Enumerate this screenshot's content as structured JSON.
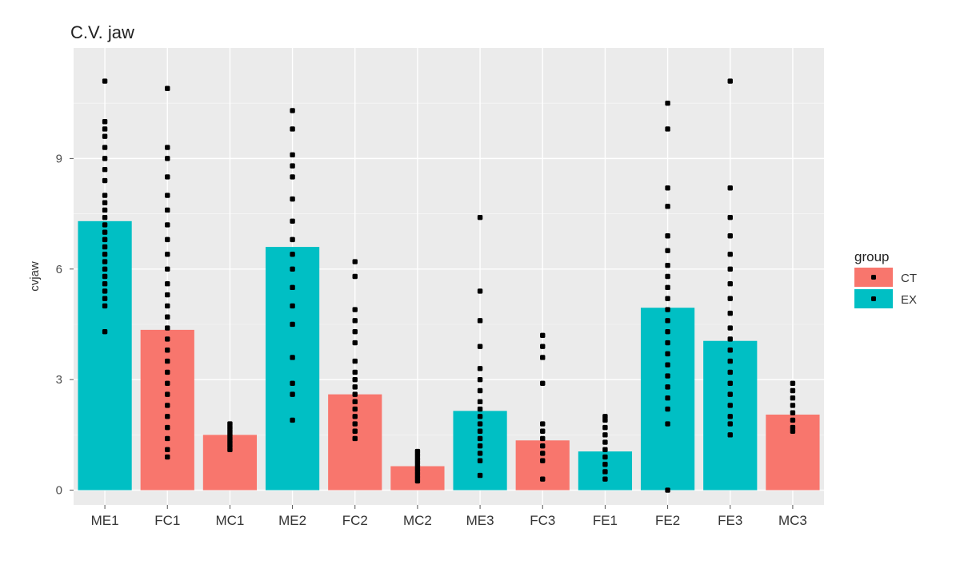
{
  "chart_data": {
    "type": "bar",
    "title": "C.V. jaw",
    "xlabel": "",
    "ylabel": "cvjaw",
    "ylim": [
      -0.4,
      12
    ],
    "yticks": [
      0,
      3,
      6,
      9
    ],
    "categories": [
      "ME1",
      "FC1",
      "MC1",
      "ME2",
      "FC2",
      "MC2",
      "ME3",
      "FC3",
      "FE1",
      "FE2",
      "FE3",
      "MC3"
    ],
    "values": [
      7.3,
      4.35,
      1.5,
      6.6,
      2.6,
      0.65,
      2.15,
      1.35,
      1.05,
      4.95,
      4.05,
      2.05
    ],
    "groups": [
      "EX",
      "CT",
      "CT",
      "EX",
      "CT",
      "CT",
      "EX",
      "CT",
      "EX",
      "EX",
      "EX",
      "CT"
    ],
    "legend": {
      "title": "group",
      "position": "right",
      "entries": [
        {
          "name": "CT",
          "color": "#F8766D"
        },
        {
          "name": "EX",
          "color": "#00BFC4"
        }
      ]
    },
    "points": [
      [
        11.1,
        10.0,
        9.8,
        9.6,
        9.3,
        9.0,
        8.7,
        8.4,
        8.0,
        7.8,
        7.6,
        7.4,
        7.2,
        7.0,
        6.8,
        6.6,
        6.4,
        6.2,
        6.0,
        5.8,
        5.6,
        5.4,
        5.2,
        5.0,
        4.3
      ],
      [
        10.9,
        9.3,
        9.0,
        8.5,
        8.0,
        7.6,
        7.2,
        6.8,
        6.4,
        6.0,
        5.6,
        5.3,
        5.0,
        4.7,
        4.4,
        4.1,
        3.8,
        3.5,
        3.2,
        2.9,
        2.6,
        2.3,
        2.0,
        1.7,
        1.4,
        1.1,
        0.9
      ],
      [
        1.8,
        1.7,
        1.6,
        1.5,
        1.4,
        1.3,
        1.2,
        1.1
      ],
      [
        10.3,
        9.8,
        9.1,
        8.8,
        8.5,
        7.9,
        7.3,
        6.8,
        6.4,
        6.0,
        5.5,
        5.0,
        4.5,
        3.6,
        2.9,
        2.6,
        1.9
      ],
      [
        6.2,
        5.8,
        4.9,
        4.6,
        4.3,
        4.0,
        3.5,
        3.2,
        3.0,
        2.8,
        2.6,
        2.4,
        2.2,
        2.0,
        1.8,
        1.6,
        1.4
      ],
      [
        1.05,
        0.95,
        0.85,
        0.75,
        0.65,
        0.55,
        0.45,
        0.35,
        0.25
      ],
      [
        7.4,
        5.4,
        4.6,
        3.9,
        3.3,
        3.0,
        2.7,
        2.4,
        2.2,
        2.0,
        1.8,
        1.6,
        1.4,
        1.2,
        1.0,
        0.8,
        0.4
      ],
      [
        4.2,
        3.9,
        3.6,
        2.9,
        1.8,
        1.6,
        1.4,
        1.2,
        1.0,
        0.8,
        0.3
      ],
      [
        2.0,
        1.9,
        1.7,
        1.5,
        1.3,
        1.1,
        0.9,
        0.7,
        0.5,
        0.3
      ],
      [
        10.5,
        9.8,
        8.2,
        7.7,
        6.9,
        6.5,
        6.1,
        5.8,
        5.5,
        5.2,
        4.9,
        4.6,
        4.3,
        4.0,
        3.7,
        3.4,
        3.1,
        2.8,
        2.5,
        2.2,
        1.8,
        0.0
      ],
      [
        11.1,
        8.2,
        7.4,
        6.9,
        6.4,
        6.0,
        5.6,
        5.2,
        4.8,
        4.4,
        4.1,
        3.8,
        3.5,
        3.2,
        2.9,
        2.6,
        2.3,
        2.0,
        1.8,
        1.5
      ],
      [
        2.9,
        2.7,
        2.5,
        2.3,
        2.1,
        1.9,
        1.7,
        1.6
      ]
    ]
  }
}
